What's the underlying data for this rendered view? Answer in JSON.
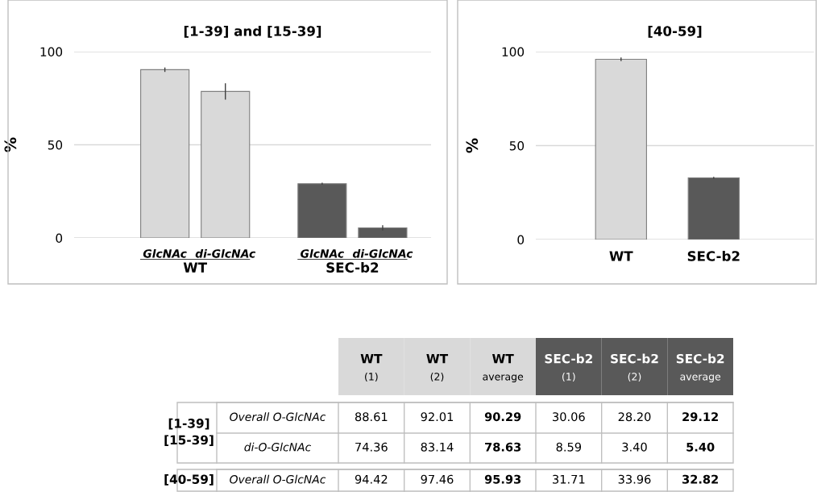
{
  "chart_data": [
    {
      "type": "bar",
      "title": "[1-39] and [15-39]",
      "ylabel": "%",
      "categories": [
        "GlcNAc",
        "di-GlcNAc",
        "GlcNAc",
        "di-GlcNAc"
      ],
      "values": [
        90.29,
        78.63,
        29.12,
        5.4
      ],
      "colors": [
        "#d9d9d9",
        "#d9d9d9",
        "#595959",
        "#595959"
      ],
      "errors": [
        1.2,
        4.4,
        0.5,
        1.4
      ],
      "annotations": [
        "WT",
        "SEC-b2"
      ],
      "ylim": [
        0,
        100
      ],
      "yticks": [
        0,
        50,
        100
      ],
      "grid": "y"
    },
    {
      "type": "bar",
      "title": "[40-59]",
      "ylabel": "%",
      "categories": [
        "WT",
        "SEC-b2"
      ],
      "values": [
        95.93,
        32.82
      ],
      "colors": [
        "#d9d9d9",
        "#595959"
      ],
      "errors": [
        1.0,
        0.5
      ],
      "ylim": [
        0,
        100
      ],
      "yticks": [
        0,
        50,
        100
      ],
      "grid": "y"
    },
    {
      "type": "other",
      "categories": [
        "WT\n(1)",
        "WT\n(2)",
        "WT\naverage",
        "SEC-b2\n(1)",
        "SEC-b2\n(2)",
        "SEC-b2\naverage"
      ],
      "colors": [
        "#d9d9d9",
        "#d9d9d9",
        "#d9d9d9",
        "#595959",
        "#595959",
        "#595959"
      ],
      "y_categories": [
        "[1-39]\n[15-39]",
        null,
        "[40-59]"
      ],
      "y2_categories": [
        "Overall O-GlcNAc",
        "di-O-GlcNAc",
        "Overall O-GlcNAc"
      ],
      "cell_labels": [
        [
          "88.61",
          "92.01",
          "90.29",
          "30.06",
          "28.20",
          "29.12"
        ],
        [
          "74.36",
          "83.14",
          "78.63",
          "8.59",
          "3.40",
          "5.40"
        ],
        [
          "94.42",
          "97.46",
          "95.93",
          "31.71",
          "33.96",
          "32.82"
        ]
      ]
    }
  ]
}
